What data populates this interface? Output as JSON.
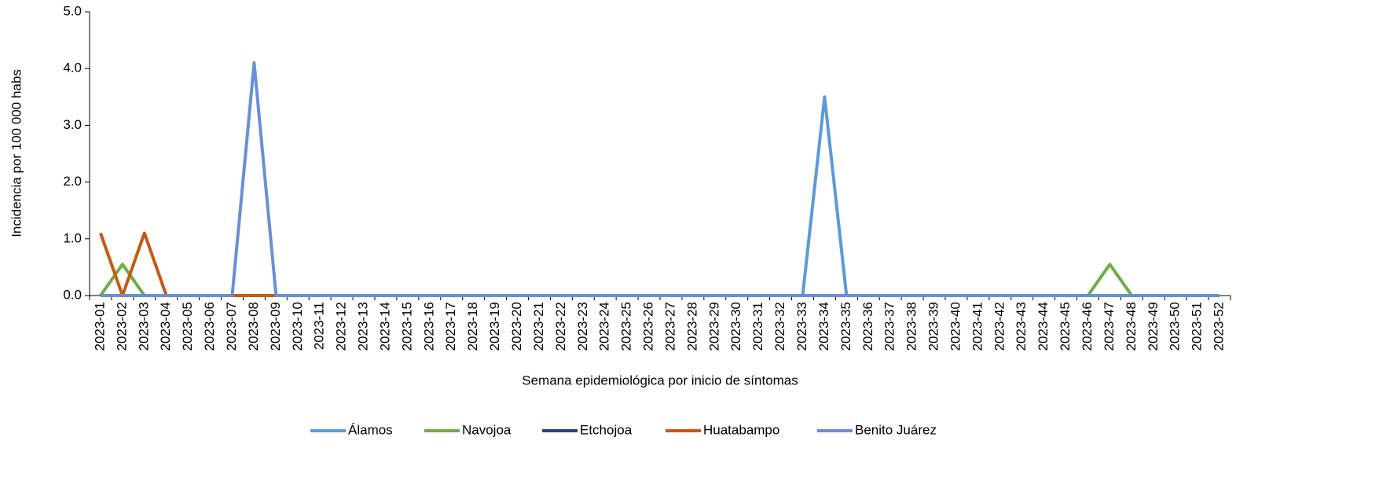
{
  "chart_data": {
    "type": "line",
    "x_label": "Semana epidemiológica por inicio de síntomas",
    "y_label": "Incidencia por 100 000 habs",
    "categories": [
      "2023-01",
      "2023-02",
      "2023-03",
      "2023-04",
      "2023-05",
      "2023-06",
      "2023-07",
      "2023-08",
      "2023-09",
      "2023-10",
      "2023-11",
      "2023-12",
      "2023-13",
      "2023-14",
      "2023-15",
      "2023-16",
      "2023-17",
      "2023-18",
      "2023-19",
      "2023-20",
      "2023-21",
      "2023-22",
      "2023-23",
      "2023-24",
      "2023-25",
      "2023-26",
      "2023-27",
      "2023-28",
      "2023-29",
      "2023-30",
      "2023-31",
      "2023-32",
      "2023-33",
      "2023-34",
      "2023-35",
      "2023-36",
      "2023-37",
      "2023-38",
      "2023-39",
      "2023-40",
      "2023-41",
      "2023-42",
      "2023-43",
      "2023-44",
      "2023-45",
      "2023-46",
      "2023-47",
      "2023-48",
      "2023-49",
      "2023-50",
      "2023-51",
      "2023-52"
    ],
    "series": [
      {
        "name": "Álamos",
        "color": "#5b9bd5",
        "values": [
          0,
          0,
          0,
          0,
          0,
          0,
          0,
          0,
          0,
          0,
          0,
          0,
          0,
          0,
          0,
          0,
          0,
          0,
          0,
          0,
          0,
          0,
          0,
          0,
          0,
          0,
          0,
          0,
          0,
          0,
          0,
          0,
          0,
          3.5,
          0,
          0,
          0,
          0,
          0,
          0,
          0,
          0,
          0,
          0,
          0,
          0,
          0,
          0,
          0,
          0,
          0,
          0
        ]
      },
      {
        "name": "Navojoa",
        "color": "#70ad47",
        "values": [
          0,
          0.55,
          0,
          0,
          0,
          0,
          0,
          0,
          0,
          0,
          0,
          0,
          0,
          0,
          0,
          0,
          0,
          0,
          0,
          0,
          0,
          0,
          0,
          0,
          0,
          0,
          0,
          0,
          0,
          0,
          0,
          0,
          0,
          0,
          0,
          0,
          0,
          0,
          0,
          0,
          0,
          0,
          0,
          0,
          0,
          0,
          0.55,
          0,
          0,
          0,
          0,
          0
        ]
      },
      {
        "name": "Etchojoa",
        "color": "#264478",
        "values": [
          0,
          0,
          0,
          0,
          0,
          0,
          0,
          0,
          0,
          0,
          0,
          0,
          0,
          0,
          0,
          0,
          0,
          0,
          0,
          0,
          0,
          0,
          0,
          0,
          0,
          0,
          0,
          0,
          0,
          0,
          0,
          0,
          0,
          0,
          0,
          0,
          0,
          0,
          0,
          0,
          0,
          0,
          0,
          0,
          0,
          0,
          0,
          0,
          0,
          0,
          0,
          0
        ]
      },
      {
        "name": "Huatabampo",
        "color": "#c55a11",
        "values": [
          1.1,
          0,
          1.1,
          0,
          0,
          0,
          0,
          0,
          0,
          0,
          0,
          0,
          0,
          0,
          0,
          0,
          0,
          0,
          0,
          0,
          0,
          0,
          0,
          0,
          0,
          0,
          0,
          0,
          0,
          0,
          0,
          0,
          0,
          0,
          0,
          0,
          0,
          0,
          0,
          0,
          0,
          0,
          0,
          0,
          0,
          0,
          0,
          0,
          0,
          0,
          0,
          0
        ]
      },
      {
        "name": "Benito Juárez",
        "color": "#6a8fd6",
        "values": [
          0,
          0,
          0,
          0,
          0,
          0,
          0,
          4.1,
          0,
          0,
          0,
          0,
          0,
          0,
          0,
          0,
          0,
          0,
          0,
          0,
          0,
          0,
          0,
          0,
          0,
          0,
          0,
          0,
          0,
          0,
          0,
          0,
          0,
          0,
          0,
          0,
          0,
          0,
          0,
          0,
          0,
          0,
          0,
          0,
          0,
          0,
          0,
          0,
          0,
          0,
          0,
          0
        ]
      }
    ],
    "ylim": [
      0,
      5
    ],
    "yticks": [
      {
        "value": 0,
        "label": "0.0"
      },
      {
        "value": 1,
        "label": "1.0"
      },
      {
        "value": 2,
        "label": "2.0"
      },
      {
        "value": 3,
        "label": "3.0"
      },
      {
        "value": 4,
        "label": "4.0"
      },
      {
        "value": 5,
        "label": "5.0"
      }
    ],
    "grid": false,
    "legend": "bottom"
  }
}
